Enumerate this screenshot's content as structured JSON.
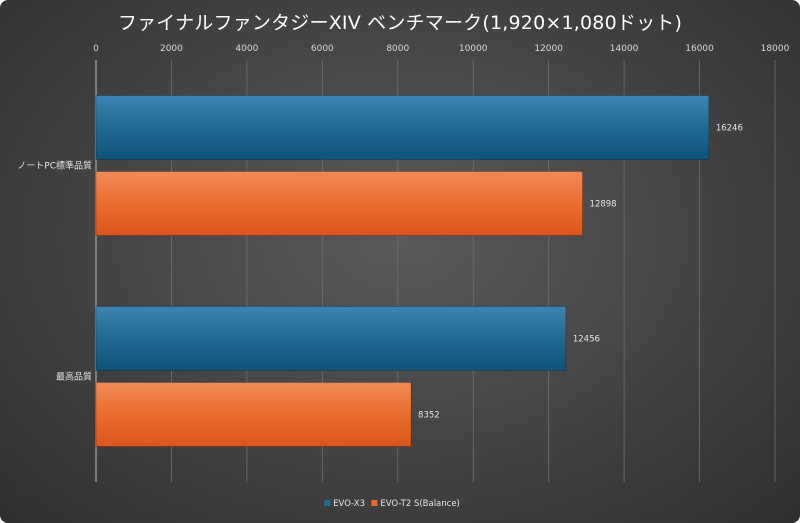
{
  "chart_data": {
    "type": "bar",
    "orientation": "horizontal",
    "title": "ファイナルファンタジーXIV ベンチマーク(1,920×1,080ドット)",
    "categories": [
      "ノートPC標準品質",
      "最高品質"
    ],
    "series": [
      {
        "name": "EVO-X3",
        "values": [
          16246,
          12456
        ],
        "color": "#1f6d99"
      },
      {
        "name": "EVO-T2 S(Balance)",
        "values": [
          12898,
          8352
        ],
        "color": "#e8692b"
      }
    ],
    "xlim": [
      0,
      18000
    ],
    "xticks": [
      0,
      2000,
      4000,
      6000,
      8000,
      10000,
      12000,
      14000,
      16000,
      18000
    ],
    "x_axis_position": "top",
    "grid": true,
    "legend": "bottom",
    "data_labels": true
  }
}
